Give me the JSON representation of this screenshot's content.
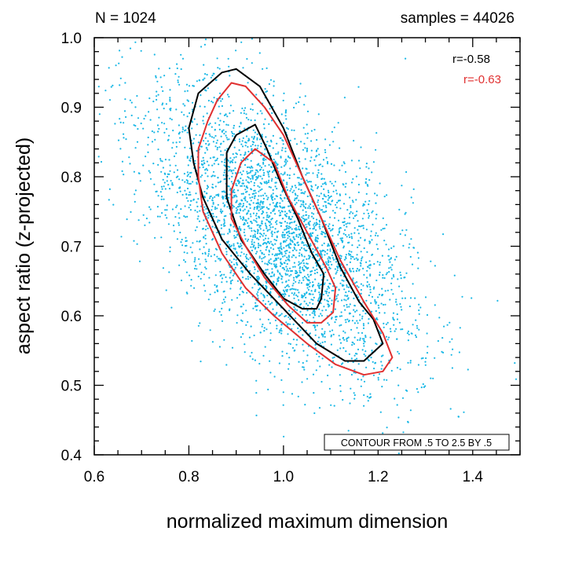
{
  "chart_data": {
    "type": "scatter",
    "title_left": "N = 1024",
    "title_right": "samples = 44026",
    "xlabel": "normalized maximum dimension",
    "ylabel": "aspect ratio (z-projected)",
    "xlim": [
      0.6,
      1.5
    ],
    "ylim": [
      0.4,
      1.0
    ],
    "xticks": [
      0.6,
      0.8,
      1.0,
      1.2,
      1.4
    ],
    "xtick_labels": [
      "0.6",
      "0.8",
      "1.0",
      "1.2",
      "1.4"
    ],
    "yticks": [
      0.4,
      0.5,
      0.6,
      0.7,
      0.8,
      0.9,
      1.0
    ],
    "ytick_labels": [
      "0.4",
      "0.5",
      "0.6",
      "0.7",
      "0.8",
      "0.9",
      "1.0"
    ],
    "scatter": {
      "color": "#1ab8e6",
      "count_drawn": 3500,
      "center": [
        0.99,
        0.72
      ],
      "sd": [
        0.14,
        0.105
      ],
      "correlation": -0.58
    },
    "correlations": [
      {
        "label": "r=-0.58",
        "color": "#000000"
      },
      {
        "label": "r=-0.63",
        "color": "#e03030"
      }
    ],
    "contour_note": "CONTOUR FROM .5 TO 2.5 BY .5",
    "contours": [
      {
        "name": "black-outer",
        "color": "#000000",
        "points": [
          [
            0.8,
            0.87
          ],
          [
            0.82,
            0.92
          ],
          [
            0.87,
            0.95
          ],
          [
            0.9,
            0.955
          ],
          [
            0.95,
            0.93
          ],
          [
            1.0,
            0.87
          ],
          [
            1.04,
            0.8
          ],
          [
            1.08,
            0.74
          ],
          [
            1.12,
            0.67
          ],
          [
            1.16,
            0.62
          ],
          [
            1.19,
            0.595
          ],
          [
            1.21,
            0.56
          ],
          [
            1.17,
            0.535
          ],
          [
            1.13,
            0.535
          ],
          [
            1.07,
            0.56
          ],
          [
            1.0,
            0.61
          ],
          [
            0.93,
            0.66
          ],
          [
            0.87,
            0.71
          ],
          [
            0.83,
            0.77
          ],
          [
            0.81,
            0.82
          ],
          [
            0.8,
            0.87
          ]
        ]
      },
      {
        "name": "black-inner",
        "color": "#000000",
        "points": [
          [
            0.88,
            0.835
          ],
          [
            0.9,
            0.86
          ],
          [
            0.94,
            0.875
          ],
          [
            0.965,
            0.84
          ],
          [
            0.995,
            0.79
          ],
          [
            1.03,
            0.74
          ],
          [
            1.06,
            0.69
          ],
          [
            1.085,
            0.66
          ],
          [
            1.08,
            0.625
          ],
          [
            1.07,
            0.61
          ],
          [
            1.04,
            0.61
          ],
          [
            1.0,
            0.625
          ],
          [
            0.96,
            0.66
          ],
          [
            0.91,
            0.71
          ],
          [
            0.88,
            0.77
          ],
          [
            0.88,
            0.835
          ]
        ]
      },
      {
        "name": "red-outer",
        "color": "#e03030",
        "points": [
          [
            0.82,
            0.84
          ],
          [
            0.84,
            0.88
          ],
          [
            0.86,
            0.91
          ],
          [
            0.89,
            0.935
          ],
          [
            0.92,
            0.93
          ],
          [
            0.96,
            0.9
          ],
          [
            1.0,
            0.86
          ],
          [
            1.04,
            0.8
          ],
          [
            1.08,
            0.74
          ],
          [
            1.12,
            0.68
          ],
          [
            1.17,
            0.62
          ],
          [
            1.21,
            0.575
          ],
          [
            1.23,
            0.54
          ],
          [
            1.21,
            0.52
          ],
          [
            1.17,
            0.515
          ],
          [
            1.11,
            0.53
          ],
          [
            1.05,
            0.56
          ],
          [
            0.98,
            0.6
          ],
          [
            0.92,
            0.64
          ],
          [
            0.87,
            0.69
          ],
          [
            0.83,
            0.75
          ],
          [
            0.82,
            0.8
          ],
          [
            0.82,
            0.84
          ]
        ]
      },
      {
        "name": "red-inner",
        "color": "#e03030",
        "points": [
          [
            0.89,
            0.78
          ],
          [
            0.91,
            0.82
          ],
          [
            0.94,
            0.84
          ],
          [
            0.98,
            0.82
          ],
          [
            1.01,
            0.77
          ],
          [
            1.05,
            0.72
          ],
          [
            1.09,
            0.67
          ],
          [
            1.11,
            0.64
          ],
          [
            1.105,
            0.605
          ],
          [
            1.08,
            0.59
          ],
          [
            1.05,
            0.59
          ],
          [
            1.01,
            0.615
          ],
          [
            0.96,
            0.655
          ],
          [
            0.92,
            0.7
          ],
          [
            0.89,
            0.74
          ],
          [
            0.89,
            0.78
          ]
        ]
      }
    ]
  }
}
